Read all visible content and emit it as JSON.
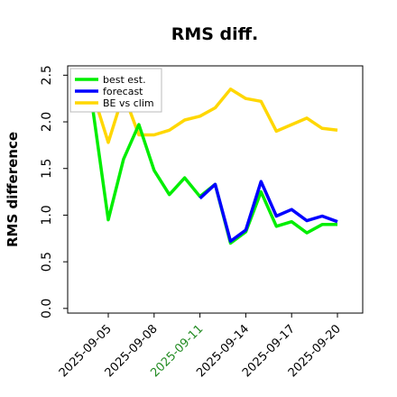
{
  "chart_data": {
    "type": "line",
    "title": "RMS diff.",
    "xlabel": "",
    "ylabel": "RMS difference",
    "x": [
      "2025-09-04",
      "2025-09-05",
      "2025-09-06",
      "2025-09-07",
      "2025-09-08",
      "2025-09-09",
      "2025-09-10",
      "2025-09-11",
      "2025-09-12",
      "2025-09-13",
      "2025-09-14",
      "2025-09-15",
      "2025-09-16",
      "2025-09-17",
      "2025-09-18",
      "2025-09-19",
      "2025-09-20"
    ],
    "x_ticks": [
      {
        "label": "2025-09-05",
        "color": "#000000"
      },
      {
        "label": "2025-09-08",
        "color": "#000000"
      },
      {
        "label": "2025-09-11",
        "color": "#228b22"
      },
      {
        "label": "2025-09-14",
        "color": "#000000"
      },
      {
        "label": "2025-09-17",
        "color": "#000000"
      },
      {
        "label": "2025-09-20",
        "color": "#000000"
      }
    ],
    "ylim": [
      -0.05,
      2.6
    ],
    "y_ticks": [
      "0.0",
      "0.5",
      "1.0",
      "1.5",
      "2.0",
      "2.5"
    ],
    "grid": false,
    "legend_position": "top-left",
    "series": [
      {
        "name": "best est.",
        "color": "#00ee00",
        "values": [
          2.12,
          0.95,
          1.6,
          1.97,
          1.48,
          1.22,
          1.4,
          1.2,
          1.33,
          0.7,
          0.82,
          1.25,
          0.88,
          0.93,
          0.81,
          0.9,
          0.9
        ]
      },
      {
        "name": "forecast",
        "color": "#0000ff",
        "values": [
          null,
          null,
          null,
          null,
          null,
          null,
          null,
          1.18,
          1.33,
          0.72,
          0.84,
          1.36,
          0.99,
          1.06,
          0.94,
          0.99,
          0.93
        ]
      },
      {
        "name": "BE vs clim",
        "color": "#ffd700",
        "values": [
          2.3,
          1.78,
          2.3,
          1.86,
          1.86,
          1.91,
          2.02,
          2.06,
          2.15,
          2.35,
          2.25,
          2.22,
          1.9,
          1.97,
          2.04,
          1.93,
          1.91
        ]
      }
    ]
  }
}
